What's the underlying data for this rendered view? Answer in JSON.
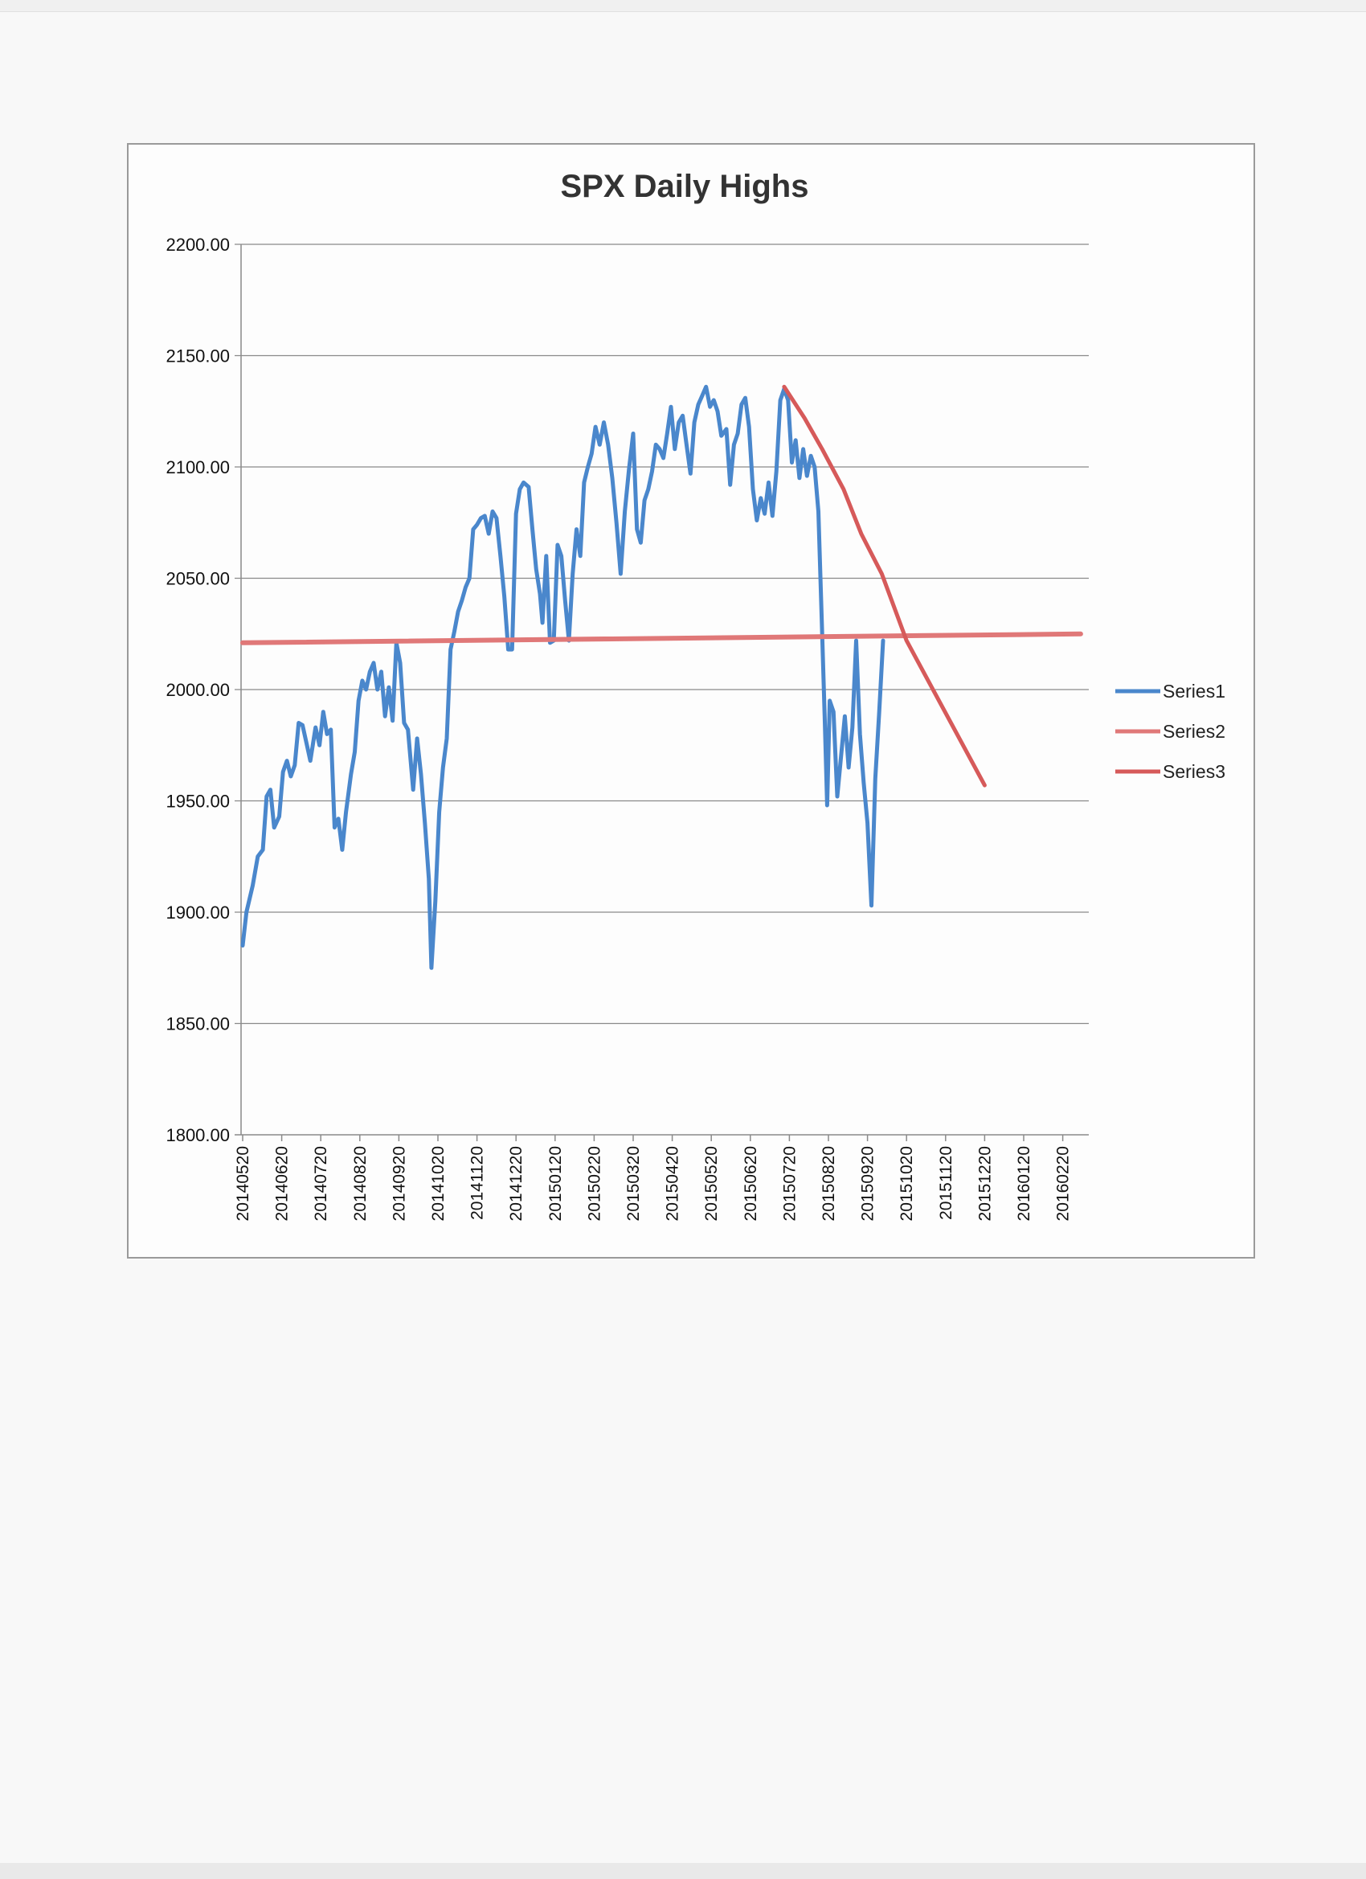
{
  "chart_data": {
    "type": "line",
    "title": "SPX Daily Highs",
    "xlabel": "",
    "ylabel": "",
    "ylim": [
      1800,
      2200
    ],
    "y_ticks": [
      "1800.00",
      "1850.00",
      "1900.00",
      "1950.00",
      "2000.00",
      "2050.00",
      "2100.00",
      "2150.00",
      "2200.00"
    ],
    "x_ticks": [
      "20140520",
      "20140620",
      "20140720",
      "20140820",
      "20140920",
      "20141020",
      "20141120",
      "20141220",
      "20150120",
      "20150220",
      "20150320",
      "20150420",
      "20150520",
      "20150620",
      "20150720",
      "20150820",
      "20150920",
      "20151020",
      "20151120",
      "20151220",
      "20160120",
      "20160220"
    ],
    "grid": true,
    "legend": "right",
    "series": [
      {
        "name": "Series1",
        "color": "#4a87cc",
        "points": [
          [
            "20140520",
            1885
          ],
          [
            "20140523",
            1900
          ],
          [
            "20140528",
            1912
          ],
          [
            "20140601",
            1925
          ],
          [
            "20140605",
            1928
          ],
          [
            "20140608",
            1952
          ],
          [
            "20140611",
            1955
          ],
          [
            "20140614",
            1938
          ],
          [
            "20140618",
            1943
          ],
          [
            "20140621",
            1963
          ],
          [
            "20140624",
            1968
          ],
          [
            "20140627",
            1961
          ],
          [
            "20140630",
            1966
          ],
          [
            "20140703",
            1985
          ],
          [
            "20140706",
            1984
          ],
          [
            "20140709",
            1976
          ],
          [
            "20140712",
            1968
          ],
          [
            "20140716",
            1983
          ],
          [
            "20140719",
            1975
          ],
          [
            "20140722",
            1990
          ],
          [
            "20140725",
            1980
          ],
          [
            "20140728",
            1982
          ],
          [
            "20140731",
            1938
          ],
          [
            "20140803",
            1942
          ],
          [
            "20140806",
            1928
          ],
          [
            "20140809",
            1945
          ],
          [
            "20140813",
            1962
          ],
          [
            "20140816",
            1972
          ],
          [
            "20140819",
            1995
          ],
          [
            "20140822",
            2004
          ],
          [
            "20140825",
            2000
          ],
          [
            "20140828",
            2008
          ],
          [
            "20140831",
            2012
          ],
          [
            "20140903",
            2000
          ],
          [
            "20140906",
            2008
          ],
          [
            "20140909",
            1988
          ],
          [
            "20140912",
            2001
          ],
          [
            "20140915",
            1986
          ],
          [
            "20140918",
            2021
          ],
          [
            "20140921",
            2012
          ],
          [
            "20140924",
            1985
          ],
          [
            "20140927",
            1982
          ],
          [
            "20141001",
            1955
          ],
          [
            "20141004",
            1978
          ],
          [
            "20141007",
            1962
          ],
          [
            "20141010",
            1940
          ],
          [
            "20141013",
            1915
          ],
          [
            "20141015",
            1875
          ],
          [
            "20141018",
            1905
          ],
          [
            "20141021",
            1945
          ],
          [
            "20141024",
            1965
          ],
          [
            "20141027",
            1978
          ],
          [
            "20141030",
            2018
          ],
          [
            "20141102",
            2026
          ],
          [
            "20141105",
            2035
          ],
          [
            "20141108",
            2040
          ],
          [
            "20141111",
            2046
          ],
          [
            "20141114",
            2050
          ],
          [
            "20141117",
            2072
          ],
          [
            "20141120",
            2074
          ],
          [
            "20141123",
            2077
          ],
          [
            "20141126",
            2078
          ],
          [
            "20141129",
            2070
          ],
          [
            "20141202",
            2080
          ],
          [
            "20141205",
            2077
          ],
          [
            "20141208",
            2060
          ],
          [
            "20141211",
            2042
          ],
          [
            "20141214",
            2018
          ],
          [
            "20141217",
            2018
          ],
          [
            "20141220",
            2079
          ],
          [
            "20141223",
            2090
          ],
          [
            "20141226",
            2093
          ],
          [
            "20141230",
            2091
          ],
          [
            "20150102",
            2072
          ],
          [
            "20150105",
            2054
          ],
          [
            "20150108",
            2043
          ],
          [
            "20150110",
            2030
          ],
          [
            "20150113",
            2060
          ],
          [
            "20150116",
            2021
          ],
          [
            "20150119",
            2022
          ],
          [
            "20150122",
            2065
          ],
          [
            "20150125",
            2060
          ],
          [
            "20150128",
            2040
          ],
          [
            "20150131",
            2022
          ],
          [
            "20150203",
            2052
          ],
          [
            "20150206",
            2072
          ],
          [
            "20150209",
            2060
          ],
          [
            "20150212",
            2093
          ],
          [
            "20150215",
            2100
          ],
          [
            "20150218",
            2106
          ],
          [
            "20150221",
            2118
          ],
          [
            "20150224",
            2110
          ],
          [
            "20150227",
            2120
          ],
          [
            "20150302",
            2110
          ],
          [
            "20150305",
            2095
          ],
          [
            "20150308",
            2075
          ],
          [
            "20150311",
            2052
          ],
          [
            "20150314",
            2080
          ],
          [
            "20150317",
            2099
          ],
          [
            "20150320",
            2115
          ],
          [
            "20150323",
            2072
          ],
          [
            "20150326",
            2066
          ],
          [
            "20150329",
            2085
          ],
          [
            "20150401",
            2090
          ],
          [
            "20150404",
            2098
          ],
          [
            "20150407",
            2110
          ],
          [
            "20150410",
            2108
          ],
          [
            "20150413",
            2104
          ],
          [
            "20150416",
            2115
          ],
          [
            "20150419",
            2127
          ],
          [
            "20150422",
            2108
          ],
          [
            "20150425",
            2120
          ],
          [
            "20150428",
            2123
          ],
          [
            "20150501",
            2110
          ],
          [
            "20150504",
            2097
          ],
          [
            "20150507",
            2120
          ],
          [
            "20150510",
            2128
          ],
          [
            "20150513",
            2132
          ],
          [
            "20150516",
            2136
          ],
          [
            "20150519",
            2127
          ],
          [
            "20150522",
            2130
          ],
          [
            "20150525",
            2125
          ],
          [
            "20150528",
            2114
          ],
          [
            "20150601",
            2117
          ],
          [
            "20150604",
            2092
          ],
          [
            "20150607",
            2110
          ],
          [
            "20150610",
            2115
          ],
          [
            "20150613",
            2128
          ],
          [
            "20150616",
            2131
          ],
          [
            "20150619",
            2118
          ],
          [
            "20150622",
            2090
          ],
          [
            "20150625",
            2076
          ],
          [
            "20150628",
            2086
          ],
          [
            "20150701",
            2079
          ],
          [
            "20150704",
            2093
          ],
          [
            "20150707",
            2078
          ],
          [
            "20150710",
            2098
          ],
          [
            "20150713",
            2130
          ],
          [
            "20150716",
            2135
          ],
          [
            "20150719",
            2130
          ],
          [
            "20150722",
            2102
          ],
          [
            "20150725",
            2112
          ],
          [
            "20150728",
            2095
          ],
          [
            "20150731",
            2108
          ],
          [
            "20150803",
            2096
          ],
          [
            "20150806",
            2105
          ],
          [
            "20150809",
            2100
          ],
          [
            "20150812",
            2080
          ],
          [
            "20150815",
            2025
          ],
          [
            "20150817",
            1988
          ],
          [
            "20150819",
            1948
          ],
          [
            "20150821",
            1995
          ],
          [
            "20150824",
            1990
          ],
          [
            "20150827",
            1952
          ],
          [
            "20150830",
            1970
          ],
          [
            "20150902",
            1988
          ],
          [
            "20150905",
            1965
          ],
          [
            "20150908",
            1983
          ],
          [
            "20150911",
            2022
          ],
          [
            "20150914",
            1980
          ],
          [
            "20150917",
            1958
          ],
          [
            "20150920",
            1940
          ],
          [
            "20150923",
            1903
          ],
          [
            "20150926",
            1960
          ],
          [
            "20150929",
            1990
          ],
          [
            "20151002",
            2022
          ]
        ]
      },
      {
        "name": "Series2",
        "color": "#e07878",
        "points": [
          [
            "20140520",
            2021
          ],
          [
            "20160305",
            2025
          ]
        ]
      },
      {
        "name": "Series3",
        "color": "#d65a5a",
        "points": [
          [
            "20150716",
            2136
          ],
          [
            "20150801",
            2122
          ],
          [
            "20150815",
            2108
          ],
          [
            "20150901",
            2090
          ],
          [
            "20150915",
            2070
          ],
          [
            "20151001",
            2052
          ],
          [
            "20151020",
            2022
          ],
          [
            "20151220",
            1957
          ]
        ]
      }
    ]
  }
}
